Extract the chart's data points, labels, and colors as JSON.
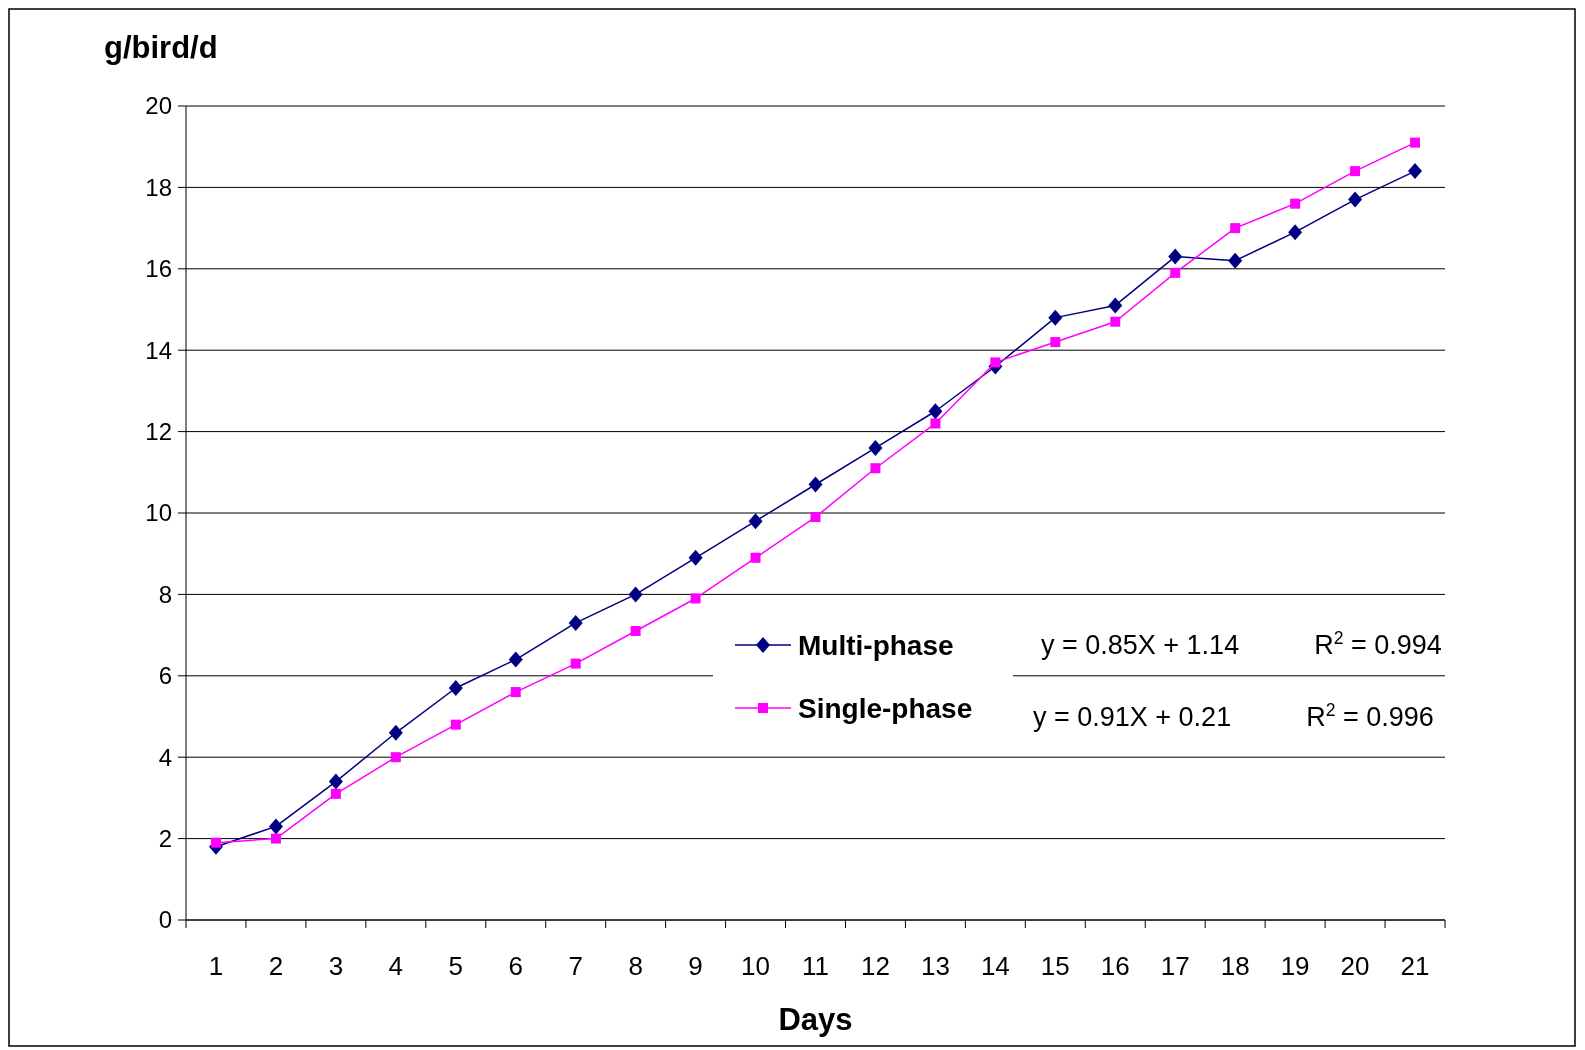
{
  "chart_data": {
    "type": "line",
    "ylabel": "g/bird/d",
    "xlabel": "Days",
    "categories": [
      "1",
      "2",
      "3",
      "4",
      "5",
      "6",
      "7",
      "8",
      "9",
      "10",
      "11",
      "12",
      "13",
      "14",
      "15",
      "16",
      "17",
      "18",
      "19",
      "20",
      "21"
    ],
    "series": [
      {
        "name": "Multi-phase",
        "color": "#000080",
        "marker": "diamond",
        "values": [
          1.8,
          2.3,
          3.4,
          4.6,
          5.7,
          6.4,
          7.3,
          8.0,
          8.9,
          9.8,
          10.7,
          11.6,
          12.5,
          13.6,
          14.8,
          15.1,
          16.3,
          16.2,
          16.9,
          17.7,
          18.4
        ]
      },
      {
        "name": "Single-phase",
        "color": "#ff00ff",
        "marker": "square",
        "values": [
          1.9,
          2.0,
          3.1,
          4.0,
          4.8,
          5.6,
          6.3,
          7.1,
          7.9,
          8.9,
          9.9,
          11.1,
          12.2,
          13.7,
          14.2,
          14.7,
          15.9,
          17.0,
          17.6,
          18.4,
          19.1
        ]
      }
    ],
    "ylim": [
      0,
      20
    ],
    "yticks": [
      0,
      2,
      4,
      6,
      8,
      10,
      12,
      14,
      16,
      18,
      20
    ],
    "grid": "y",
    "legend": "center right",
    "annotations": [
      "y = 0.85X + 1.14          R$^{2}$ = 0.994",
      "y = 0.91X + 0.21          R$^{2}$ = 0.996"
    ]
  }
}
